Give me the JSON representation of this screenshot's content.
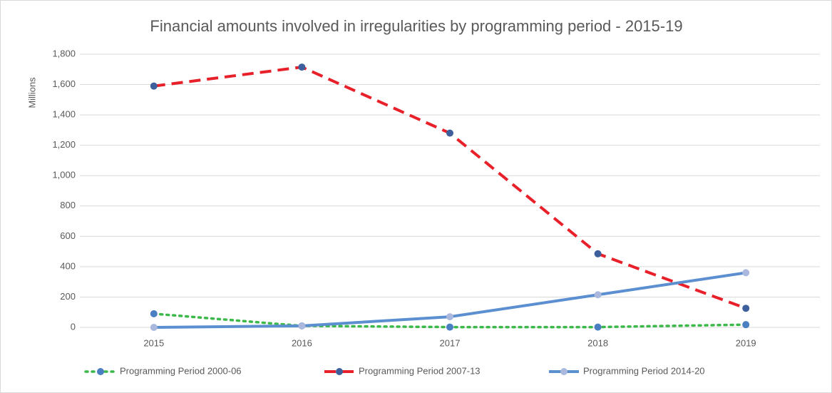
{
  "chart_data": {
    "type": "line",
    "title": "Financial amounts involved in irregularities by programming period - 2015-19",
    "y_label": "Millions",
    "categories": [
      "2015",
      "2016",
      "2017",
      "2018",
      "2019"
    ],
    "series": [
      {
        "name": "Programming Period 2000-06",
        "color": "#3cb94a",
        "marker_color": "#4a7fc1",
        "style": "dotted",
        "values": [
          90,
          10,
          2,
          2,
          18
        ]
      },
      {
        "name": "Programming Period 2007-13",
        "color": "#e8202a",
        "marker_color": "#3d5f9c",
        "style": "dashed",
        "values": [
          1590,
          1715,
          1280,
          485,
          126
        ]
      },
      {
        "name": "Programming Period 2014-20",
        "color": "#5b8fd0",
        "marker_color": "#a9b8dc",
        "style": "solid",
        "values": [
          0,
          10,
          70,
          215,
          360
        ]
      }
    ],
    "ylim": [
      0,
      1800
    ],
    "yticks": [
      0,
      200,
      400,
      600,
      800,
      {
        "value": 1000,
        "label": "1,000"
      },
      {
        "value": 1200,
        "label": "1,200"
      },
      {
        "value": 1400,
        "label": "1,400"
      },
      {
        "value": 1600,
        "label": "1,600"
      },
      {
        "value": 1800,
        "label": "1,800"
      }
    ],
    "grid": true,
    "legend": "bottom"
  }
}
